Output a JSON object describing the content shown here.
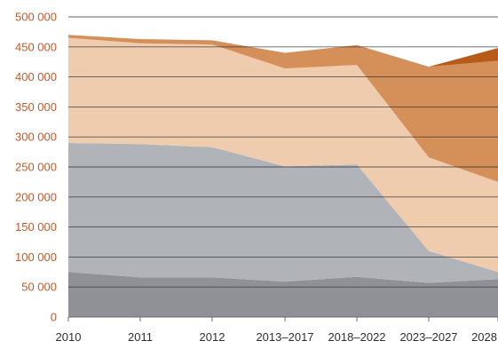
{
  "chart_data": {
    "type": "area",
    "stacked": true,
    "categories": [
      "2010",
      "2011",
      "2012",
      "2013–2017",
      "2018–2022",
      "2023–2027",
      "2028"
    ],
    "ylim": [
      0,
      500000
    ],
    "yticks": [
      0,
      50000,
      100000,
      150000,
      200000,
      250000,
      300000,
      350000,
      400000,
      450000,
      500000
    ],
    "ytick_labels": [
      "0",
      "50 000",
      "100 000",
      "150 000",
      "200 000",
      "250 000",
      "300 000",
      "350 000",
      "400 000",
      "450 000",
      "500 000"
    ],
    "grid": true,
    "series": [
      {
        "color": "#8f9196",
        "values": [
          75000,
          66000,
          66000,
          59000,
          67000,
          57000,
          63000
        ]
      },
      {
        "color": "#b0b3b7",
        "values": [
          215000,
          222000,
          217000,
          192000,
          187000,
          53000,
          12000
        ]
      },
      {
        "color": "#f0ccaf",
        "values": [
          175000,
          168000,
          171000,
          163000,
          166000,
          156000,
          150000
        ]
      },
      {
        "color": "#d58f59",
        "values": [
          5000,
          7000,
          7000,
          26000,
          33000,
          151000,
          202000
        ]
      },
      {
        "color": "#b85a18",
        "values": [
          0,
          0,
          0,
          0,
          0,
          0,
          21000
        ]
      }
    ]
  }
}
